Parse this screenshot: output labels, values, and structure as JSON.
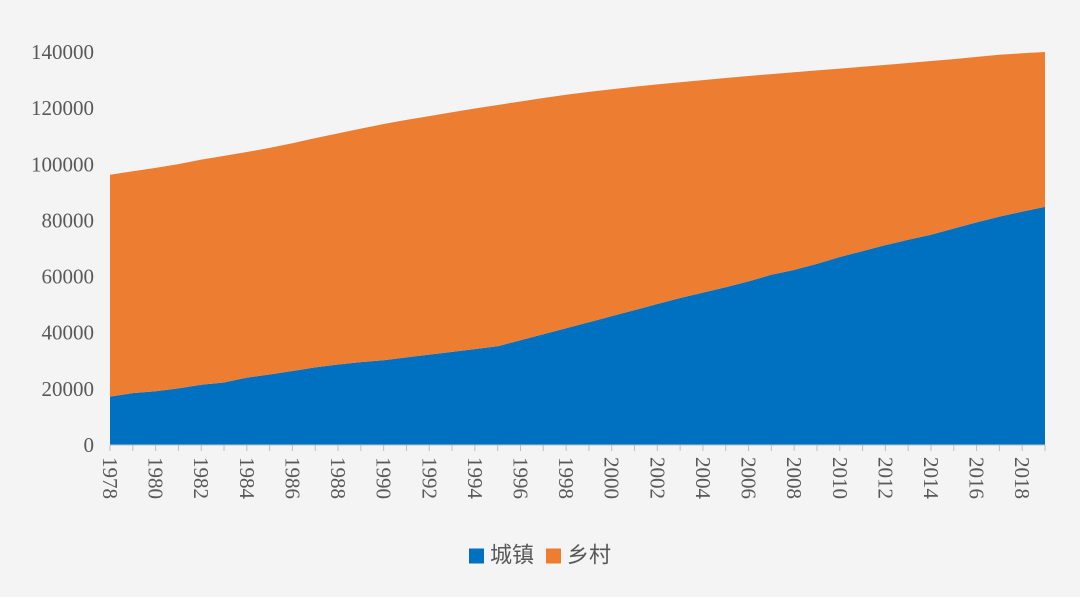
{
  "chart_data": {
    "type": "area",
    "stacked": true,
    "x": [
      1978,
      1979,
      1980,
      1981,
      1982,
      1983,
      1984,
      1985,
      1986,
      1987,
      1988,
      1989,
      1990,
      1991,
      1992,
      1993,
      1994,
      1995,
      1996,
      1997,
      1998,
      1999,
      2000,
      2001,
      2002,
      2003,
      2004,
      2005,
      2006,
      2007,
      2008,
      2009,
      2010,
      2011,
      2012,
      2013,
      2014,
      2015,
      2016,
      2017,
      2018,
      2019
    ],
    "x_tick_labels": [
      "1978",
      "1980",
      "1982",
      "1984",
      "1986",
      "1988",
      "1990",
      "1992",
      "1994",
      "1996",
      "1998",
      "2000",
      "2002",
      "2004",
      "2006",
      "2008",
      "2010",
      "2012",
      "2014",
      "2016",
      "2018"
    ],
    "series": [
      {
        "name": "城镇",
        "color": "#0070c0",
        "values": [
          17245,
          18495,
          19140,
          20171,
          21480,
          22274,
          24017,
          25094,
          26366,
          27674,
          28661,
          29540,
          30195,
          31203,
          32175,
          33173,
          34169,
          35174,
          37304,
          39449,
          41608,
          43748,
          45906,
          48064,
          50212,
          52376,
          54283,
          56212,
          58288,
          60633,
          62403,
          64512,
          66978,
          69079,
          71182,
          73111,
          74916,
          77116,
          79298,
          81347,
          83137,
          84843
        ]
      },
      {
        "name": "乡村",
        "color": "#ed7d31",
        "values": [
          79014,
          79047,
          79565,
          79901,
          80174,
          80734,
          80340,
          80757,
          81141,
          81626,
          82365,
          83164,
          84138,
          84620,
          84996,
          85344,
          85681,
          85947,
          85085,
          84177,
          83153,
          82038,
          80837,
          79563,
          78241,
          76851,
          75705,
          74544,
          73160,
          71496,
          70399,
          68938,
          67113,
          65656,
          64222,
          62961,
          61866,
          60346,
          58973,
          57661,
          56401,
          55162
        ]
      }
    ],
    "y_ticks": [
      0,
      20000,
      40000,
      60000,
      80000,
      100000,
      120000,
      140000
    ],
    "ylim": [
      0,
      140000
    ],
    "xlim": [
      1978,
      2019
    ],
    "title": "",
    "xlabel": "",
    "ylabel": "",
    "legend_position": "bottom-center",
    "grid": false
  }
}
